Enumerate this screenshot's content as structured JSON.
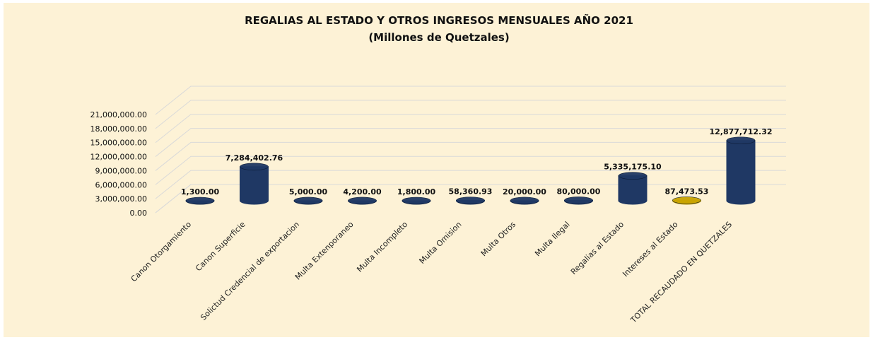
{
  "chart_data": {
    "type": "bar3d",
    "title": "REGALIAS AL ESTADO Y OTROS INGRESOS  MENSUALES AÑO 2021",
    "subtitle": "(Millones de Quetzales)",
    "categories": [
      "Canon Otorgamiento",
      "Canon Superficie",
      "Solictud Credencial de exportacion",
      "Multa Extenporaneo",
      "Multa Incompleto",
      "Multa Omision",
      "Multa Otros",
      "Multa Ilegal",
      "Regalias al Estado",
      "Intereses al Estado",
      "TOTAL RECAUDADO EN QUETZALES"
    ],
    "values": [
      1300,
      7284402.76,
      5000,
      4200,
      1800,
      58360.93,
      20000,
      80000,
      5335175.1,
      87473.53,
      12877712.32
    ],
    "value_labels": [
      "1,300.00",
      "7,284,402.76",
      "5,000.00",
      "4,200.00",
      "1,800.00",
      "58,360.93",
      "20,000.00",
      "80,000.00",
      "5,335,175.10",
      "87,473.53",
      "12,877,712.32"
    ],
    "colors": [
      "#1f3864",
      "#1f3864",
      "#1f3864",
      "#1f3864",
      "#1f3864",
      "#1f3864",
      "#1f3864",
      "#1f3864",
      "#1f3864",
      "#c9a400",
      "#1f3864"
    ],
    "ylim": [
      0,
      21000000
    ],
    "yticks": [
      {
        "value": 0,
        "label": "0.00"
      },
      {
        "value": 3000000,
        "label": "3,000,000.00"
      },
      {
        "value": 6000000,
        "label": "6,000,000.00"
      },
      {
        "value": 9000000,
        "label": "9,000,000.00"
      },
      {
        "value": 12000000,
        "label": "12,000,000.00"
      },
      {
        "value": 15000000,
        "label": "15,000,000.00"
      },
      {
        "value": 18000000,
        "label": "18,000,000.00"
      },
      {
        "value": 21000000,
        "label": "21,000,000.00"
      }
    ],
    "grid": true
  }
}
